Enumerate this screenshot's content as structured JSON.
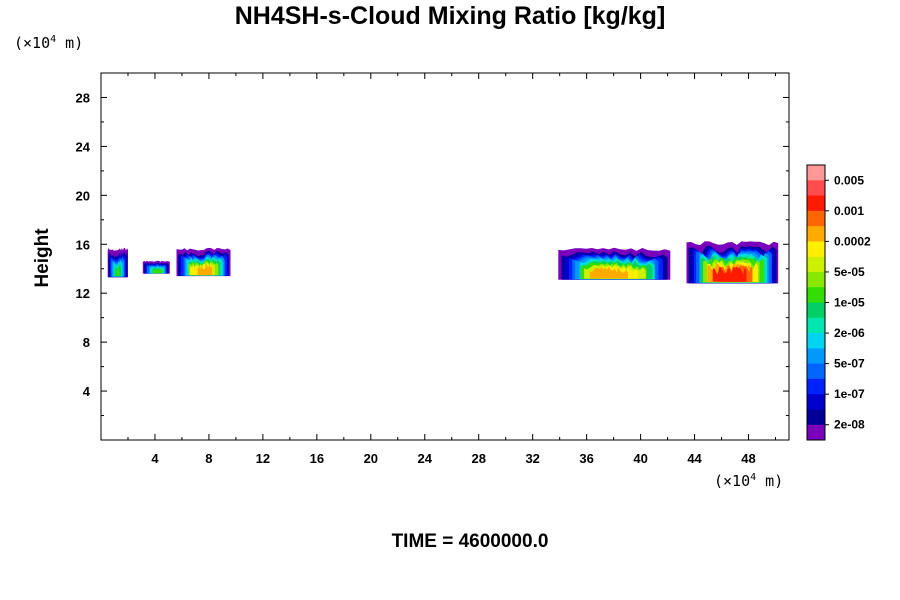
{
  "chart_data": {
    "type": "heatmap",
    "title": "NH4SH-s-Cloud Mixing Ratio [kg/kg]",
    "ylabel": "Height",
    "x_unit": "(×10⁴ m)",
    "y_unit": "(×10⁴ m)",
    "time_label": "TIME = 4600000.0",
    "xlim": [
      0,
      51
    ],
    "ylim": [
      0,
      30
    ],
    "x_ticks": [
      4,
      8,
      12,
      16,
      20,
      24,
      28,
      32,
      36,
      40,
      44,
      48
    ],
    "y_ticks": [
      4,
      8,
      12,
      16,
      20,
      24,
      28
    ],
    "colorbar": {
      "labels": [
        "0.005",
        "0.001",
        "0.0002",
        "5e-05",
        "1e-05",
        "2e-06",
        "5e-07",
        "1e-07",
        "2e-08"
      ],
      "colors": [
        "#ff9999",
        "#ff4d4d",
        "#ff1a00",
        "#ff6600",
        "#ffaa00",
        "#ffee00",
        "#ccf000",
        "#88e800",
        "#33dd00",
        "#00d066",
        "#00e6b0",
        "#00d4f0",
        "#0099ff",
        "#0066ff",
        "#0022ff",
        "#0000cc",
        "#000099",
        "#7a00bb"
      ]
    },
    "cloud_regions": [
      {
        "x": [
          0.5,
          2.0
        ],
        "y_bottom": 13.3,
        "y_top": 15.6,
        "max_level": "1e-05"
      },
      {
        "x": [
          3.1,
          5.1
        ],
        "y_bottom": 13.6,
        "y_top": 14.6,
        "max_level": "1e-05"
      },
      {
        "x": [
          5.6,
          9.6
        ],
        "y_bottom": 13.4,
        "y_top": 15.6,
        "max_level": "0.0002"
      },
      {
        "x": [
          33.9,
          42.2
        ],
        "y_bottom": 13.1,
        "y_top": 15.6,
        "max_level": "0.0002"
      },
      {
        "x": [
          43.4,
          50.2
        ],
        "y_bottom": 12.8,
        "y_top": 16.1,
        "max_level": "0.001"
      }
    ]
  }
}
